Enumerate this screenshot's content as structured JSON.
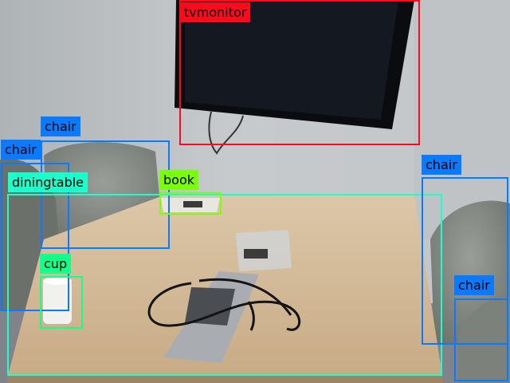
{
  "image": {
    "scene": "meeting room with wall-mounted tv, table and chairs",
    "colors": {
      "wall": "#c4c7c9",
      "wall_left": "#b7bbbd",
      "floor": "#7b7f84",
      "table": "#d2b897",
      "tv": "#0a0c10",
      "chair": "#8a8e88"
    }
  },
  "detections": [
    {
      "label": "tvmonitor",
      "color": "#ff0a1c",
      "text_color": "#000000"
    },
    {
      "label": "chair",
      "color": "#0a7bff",
      "text_color": "#000000"
    },
    {
      "label": "chair",
      "color": "#0a7bff",
      "text_color": "#000000"
    },
    {
      "label": "diningtable",
      "color": "#1affcc",
      "text_color": "#000000"
    },
    {
      "label": "book",
      "color": "#7aff0a",
      "text_color": "#000000"
    },
    {
      "label": "cup",
      "color": "#12ff8a",
      "text_color": "#000000"
    },
    {
      "label": "chair",
      "color": "#0a7bff",
      "text_color": "#000000"
    },
    {
      "label": "chair",
      "color": "#0a7bff",
      "text_color": "#000000"
    }
  ]
}
